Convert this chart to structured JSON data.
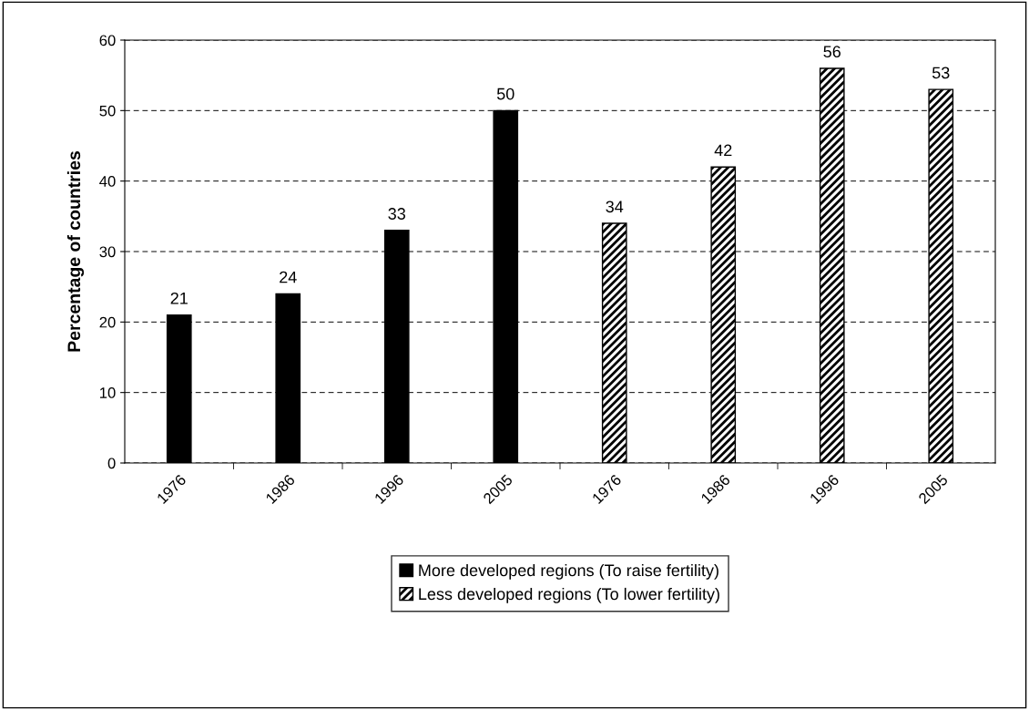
{
  "chart_data": {
    "type": "bar",
    "ylabel": "Percentage of countries",
    "categories": [
      "1976",
      "1986",
      "1996",
      "2005",
      "1976",
      "1986",
      "1996",
      "2005"
    ],
    "series": [
      {
        "name": "More developed regions (To raise fertility)",
        "color": "#000000",
        "values": [
          21,
          24,
          33,
          50,
          null,
          null,
          null,
          null
        ]
      },
      {
        "name": "Less developed regions (To lower fertility)",
        "color": "#000000",
        "values": [
          null,
          null,
          null,
          null,
          34,
          42,
          56,
          53
        ]
      }
    ],
    "ylim": [
      0,
      60
    ],
    "yticks": [
      0,
      10,
      20,
      30,
      40,
      50,
      60
    ],
    "grid": "y",
    "legend": "bottom",
    "data_labels": true
  }
}
